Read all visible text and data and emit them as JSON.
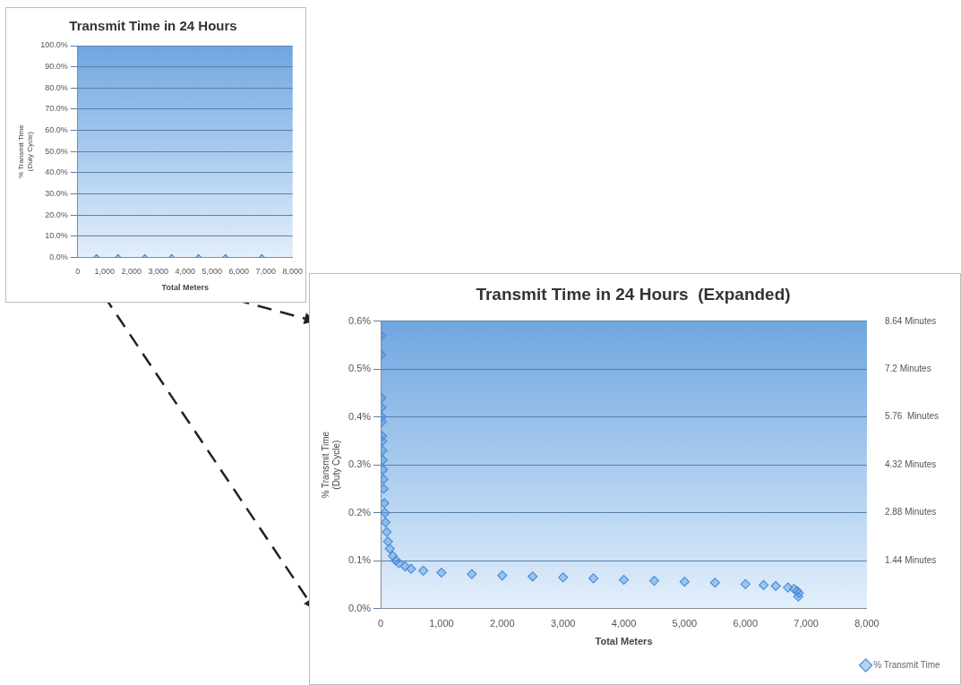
{
  "chart_data": [
    {
      "type": "scatter",
      "title": "Transmit Time in 24 Hours",
      "xlabel": "Total Meters",
      "ylabel": "% Transmit Time (Duty Cycle)",
      "marker": "diamond",
      "grid": "y",
      "legend": false,
      "xlim": [
        0,
        8000
      ],
      "xticks": [
        0,
        {
          "value": 1000,
          "label": "1,000"
        },
        {
          "value": 2000,
          "label": "2,000"
        },
        {
          "value": 3000,
          "label": "3,000"
        },
        {
          "value": 4000,
          "label": "4,000"
        },
        {
          "value": 5000,
          "label": "5,000"
        },
        {
          "value": 6000,
          "label": "6,000"
        },
        {
          "value": 7000,
          "label": "7,000"
        },
        {
          "value": 8000,
          "label": "8,000"
        }
      ],
      "ylim": [
        0,
        100
      ],
      "yticks": [
        {
          "value": 0,
          "label": "0.0%"
        },
        {
          "value": 10,
          "label": "10.0%"
        },
        {
          "value": 20,
          "label": "20.0%"
        },
        {
          "value": 30,
          "label": "30.0%"
        },
        {
          "value": 40,
          "label": "40.0%"
        },
        {
          "value": 50,
          "label": "50.0%"
        },
        {
          "value": 60,
          "label": "60.0%"
        },
        {
          "value": 70,
          "label": "70.0%"
        },
        {
          "value": 80,
          "label": "80.0%"
        },
        {
          "value": 90,
          "label": "90.0%"
        },
        {
          "value": 100,
          "label": "100.0%"
        }
      ],
      "series": [
        {
          "color": "#4a8fdc",
          "x": [
            700,
            1500,
            2500,
            3500,
            4500,
            5500,
            6850
          ],
          "values": [
            0,
            0,
            0,
            0,
            0,
            0,
            0
          ]
        }
      ]
    },
    {
      "type": "scatter",
      "title": "Transmit Time in 24 Hours  (Expanded)",
      "xlabel": "Total Meters",
      "ylabel": "% Transmit Time (Duty Cycle)",
      "marker": "diamond",
      "grid": "y",
      "legend": "bottom right",
      "xlim": [
        0,
        8000
      ],
      "xticks": [
        0,
        {
          "value": 1000,
          "label": "1,000"
        },
        {
          "value": 2000,
          "label": "2,000"
        },
        {
          "value": 3000,
          "label": "3,000"
        },
        {
          "value": 4000,
          "label": "4,000"
        },
        {
          "value": 5000,
          "label": "5,000"
        },
        {
          "value": 6000,
          "label": "6,000"
        },
        {
          "value": 7000,
          "label": "7,000"
        },
        {
          "value": 8000,
          "label": "8,000"
        }
      ],
      "ylim": [
        0,
        0.6
      ],
      "yticks": [
        {
          "value": 0,
          "label": "0.0%"
        },
        {
          "value": 0.1,
          "label": "0.1%"
        },
        {
          "value": 0.2,
          "label": "0.2%"
        },
        {
          "value": 0.3,
          "label": "0.3%"
        },
        {
          "value": 0.4,
          "label": "0.4%"
        },
        {
          "value": 0.5,
          "label": "0.5%"
        },
        {
          "value": 0.6,
          "label": "0.6%"
        }
      ],
      "y2lim": [
        0,
        8.64
      ],
      "y2ticks": [
        {
          "value": 1.44,
          "label": "1.44 Minutes"
        },
        {
          "value": 2.88,
          "label": "2.88 Minutes"
        },
        {
          "value": 4.32,
          "label": "4.32 Minutes"
        },
        {
          "value": 5.76,
          "label": "5.76  Minutes"
        },
        {
          "value": 7.2,
          "label": "7.2 Minutes"
        },
        {
          "value": 8.64,
          "label": "8.64 Minutes"
        }
      ],
      "series": [
        {
          "name": "% Transmit Time",
          "color": "#4a8fdc",
          "x": [
            5,
            8,
            12,
            15,
            18,
            20,
            22,
            25,
            30,
            35,
            40,
            45,
            50,
            60,
            70,
            80,
            100,
            120,
            150,
            200,
            250,
            300,
            400,
            500,
            700,
            1000,
            1500,
            2000,
            2500,
            3000,
            3500,
            4000,
            4500,
            5000,
            5500,
            6000,
            6300,
            6500,
            6700,
            6800,
            6850,
            6880,
            6870
          ],
          "values": [
            0.57,
            0.53,
            0.44,
            0.42,
            0.4,
            0.39,
            0.36,
            0.35,
            0.33,
            0.31,
            0.29,
            0.27,
            0.25,
            0.22,
            0.2,
            0.18,
            0.16,
            0.14,
            0.125,
            0.11,
            0.1,
            0.095,
            0.088,
            0.083,
            0.079,
            0.075,
            0.072,
            0.069,
            0.067,
            0.065,
            0.063,
            0.06,
            0.058,
            0.056,
            0.054,
            0.051,
            0.049,
            0.047,
            0.044,
            0.041,
            0.037,
            0.032,
            0.025
          ]
        }
      ]
    }
  ]
}
